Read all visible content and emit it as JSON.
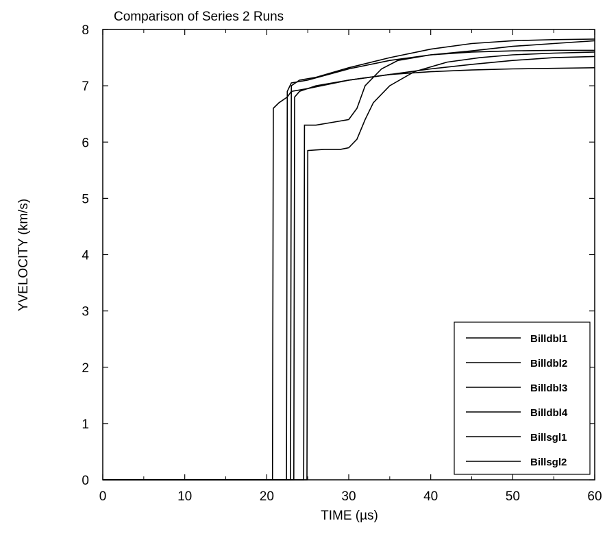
{
  "chart_data": {
    "type": "line",
    "title": "Comparison of Series 2 Runs",
    "xlabel": "TIME (µs)",
    "ylabel": "YVELOCITY (km/s)",
    "xlim": [
      0,
      60
    ],
    "ylim": [
      0,
      8
    ],
    "x_ticks": [
      "0",
      "10",
      "20",
      "30",
      "40",
      "50",
      "60"
    ],
    "y_ticks": [
      "0",
      "1",
      "2",
      "3",
      "4",
      "5",
      "6",
      "7",
      "8"
    ],
    "grid": false,
    "legend_position": "bottom-right",
    "series": [
      {
        "name": "Billdbl1",
        "color": "#000000",
        "points": [
          [
            0,
            0
          ],
          [
            20.7,
            0
          ],
          [
            20.8,
            6.6
          ],
          [
            21.5,
            6.7
          ],
          [
            22.5,
            6.8
          ],
          [
            23,
            6.9
          ],
          [
            25,
            6.95
          ],
          [
            30,
            7.1
          ],
          [
            35,
            7.2
          ],
          [
            40,
            7.25
          ],
          [
            45,
            7.28
          ],
          [
            50,
            7.3
          ],
          [
            55,
            7.31
          ],
          [
            60,
            7.32
          ]
        ]
      },
      {
        "name": "Billdbl2",
        "color": "#000000",
        "points": [
          [
            0,
            0
          ],
          [
            22.4,
            0
          ],
          [
            22.5,
            6.9
          ],
          [
            23,
            7.05
          ],
          [
            25,
            7.1
          ],
          [
            30,
            7.3
          ],
          [
            35,
            7.45
          ],
          [
            40,
            7.55
          ],
          [
            45,
            7.6
          ],
          [
            50,
            7.62
          ],
          [
            55,
            7.63
          ],
          [
            60,
            7.63
          ]
        ]
      },
      {
        "name": "Billdbl3",
        "color": "#000000",
        "points": [
          [
            0,
            0
          ],
          [
            22.9,
            0
          ],
          [
            23,
            7.0
          ],
          [
            24,
            7.1
          ],
          [
            26,
            7.15
          ],
          [
            30,
            7.32
          ],
          [
            35,
            7.5
          ],
          [
            40,
            7.65
          ],
          [
            45,
            7.75
          ],
          [
            50,
            7.8
          ],
          [
            55,
            7.82
          ],
          [
            60,
            7.83
          ]
        ]
      },
      {
        "name": "Billdbl4",
        "color": "#000000",
        "points": [
          [
            0,
            0
          ],
          [
            23.3,
            0
          ],
          [
            23.4,
            6.8
          ],
          [
            24,
            6.9
          ],
          [
            26,
            7.0
          ],
          [
            30,
            7.1
          ],
          [
            35,
            7.2
          ],
          [
            40,
            7.3
          ],
          [
            45,
            7.38
          ],
          [
            50,
            7.45
          ],
          [
            55,
            7.5
          ],
          [
            60,
            7.52
          ]
        ]
      },
      {
        "name": "Billsgl1",
        "color": "#000000",
        "points": [
          [
            0,
            0
          ],
          [
            24.5,
            0
          ],
          [
            24.6,
            6.3
          ],
          [
            26,
            6.3
          ],
          [
            28,
            6.35
          ],
          [
            30,
            6.4
          ],
          [
            31,
            6.6
          ],
          [
            32,
            7.0
          ],
          [
            34,
            7.3
          ],
          [
            36,
            7.45
          ],
          [
            40,
            7.55
          ],
          [
            45,
            7.62
          ],
          [
            50,
            7.7
          ],
          [
            55,
            7.75
          ],
          [
            60,
            7.8
          ]
        ]
      },
      {
        "name": "Billsgl2",
        "color": "#000000",
        "points": [
          [
            0,
            0
          ],
          [
            24.9,
            0
          ],
          [
            25,
            5.85
          ],
          [
            27,
            5.87
          ],
          [
            29,
            5.87
          ],
          [
            30,
            5.9
          ],
          [
            31,
            6.05
          ],
          [
            32,
            6.4
          ],
          [
            33,
            6.7
          ],
          [
            35,
            7.0
          ],
          [
            38,
            7.25
          ],
          [
            42,
            7.42
          ],
          [
            46,
            7.5
          ],
          [
            50,
            7.55
          ],
          [
            55,
            7.58
          ],
          [
            60,
            7.6
          ]
        ]
      }
    ]
  }
}
